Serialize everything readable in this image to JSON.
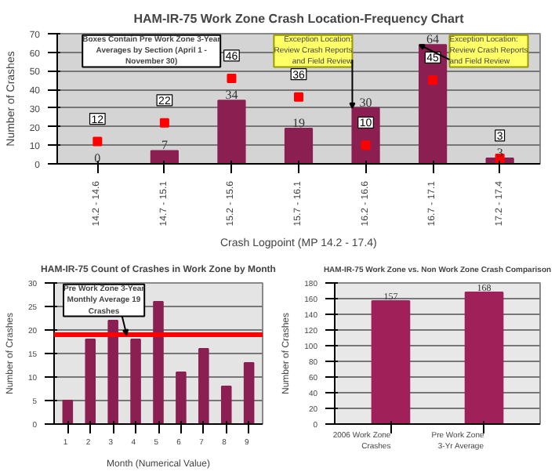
{
  "chart_data": [
    {
      "type": "bar",
      "title": "HAM-IR-75 Work Zone Crash Location-Frequency Chart",
      "xlabel": "Crash Logpoint (MP 14.2 - 17.4)",
      "ylabel": "Number of Crashes",
      "categories": [
        "14.2 - 14.6",
        "14.7 - 15.1",
        "15.2 - 15.6",
        "15.7 - 16.1",
        "16.2 - 16.6",
        "16.7 - 17.1",
        "17.2 - 17.4"
      ],
      "series": [
        {
          "color": "#8b1f52",
          "values": [
            0,
            7,
            34,
            19,
            30,
            64,
            3
          ]
        },
        {
          "type": "scatter",
          "marker": "square",
          "color": "#ff0000",
          "values": [
            12,
            22,
            46,
            36,
            10,
            45,
            3
          ]
        }
      ],
      "ylim": [
        0,
        70
      ],
      "yticks": [
        0,
        10,
        20,
        30,
        40,
        50,
        60,
        70
      ],
      "grid": "y",
      "data_labels": true,
      "annotations": [
        "Boxes Contain Pre Work Zone 3-Year Averages by Section (April 1 - November 30)",
        {
          "text": "Exception Location: Review Crash Reports and Field Review",
          "x": "16.2 - 16.6",
          "y": 30
        },
        {
          "text": "Exception Location: Review Crash Reports and Field Review",
          "x": "16.7 - 17.1",
          "y": 64
        }
      ]
    },
    {
      "type": "bar",
      "title": "HAM-IR-75 Count of Crashes in Work Zone by Month",
      "xlabel": "Month (Numerical Value)",
      "ylabel": "Number of Crashes",
      "categories": [
        "1",
        "2",
        "3",
        "4",
        "5",
        "6",
        "7",
        "8",
        "9"
      ],
      "series": [
        {
          "color": "#8b1f52",
          "values": [
            5,
            18,
            22,
            18,
            26,
            11,
            16,
            8,
            13
          ]
        }
      ],
      "ylim": [
        0,
        30
      ],
      "yticks": [
        0,
        5,
        10,
        15,
        20,
        25,
        30
      ],
      "grid": "y",
      "ref_lines": [
        {
          "axis": "y",
          "value": 19,
          "label": "Pre Work Zone 3-Year Monthly Average 19 Crashes",
          "color": "#ff0000"
        }
      ]
    },
    {
      "type": "bar",
      "title": "HAM-IR-75 Work Zone vs. Non Work Zone Crash Comparison",
      "ylabel": "Number of Crashes",
      "categories": [
        "2006 Work Zone Crashes",
        "Pre Work Zone 3-Yr Average"
      ],
      "series": [
        {
          "color": "#a0205a",
          "values": [
            157,
            168
          ]
        }
      ],
      "ylim": [
        0,
        180
      ],
      "yticks": [
        0,
        20,
        40,
        60,
        80,
        100,
        120,
        140,
        160,
        180
      ],
      "grid": "y",
      "data_labels": true
    }
  ]
}
